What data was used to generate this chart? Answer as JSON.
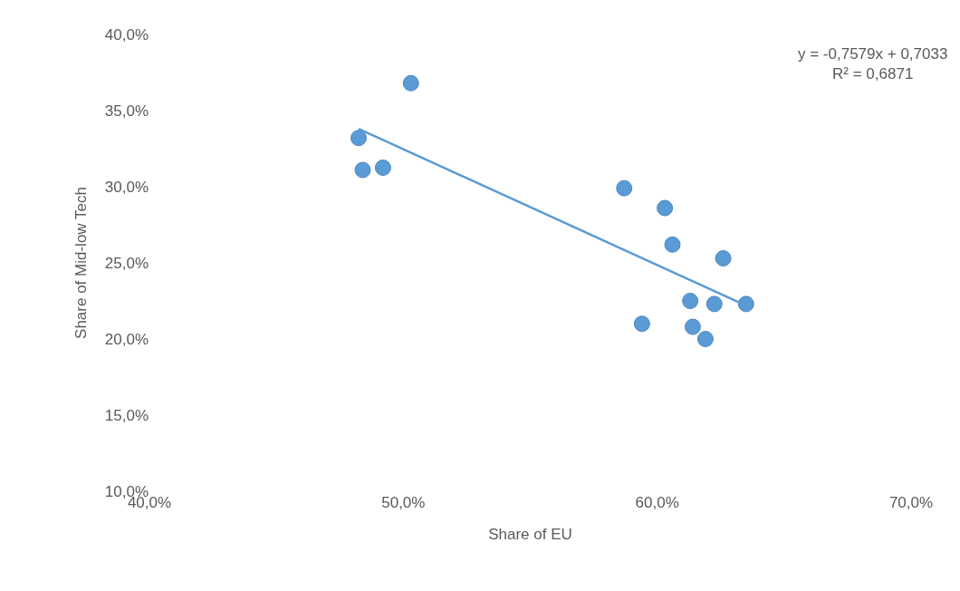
{
  "chart_data": {
    "type": "scatter",
    "xlabel": "Share of EU",
    "ylabel": "Share of Mid-low Tech",
    "series": [
      {
        "marker": "circle",
        "color": "#5b9bd5",
        "x": [
          48.24,
          48.4,
          49.2,
          50.3,
          58.7,
          59.4,
          60.3,
          60.6,
          61.3,
          61.4,
          61.9,
          62.25,
          62.6,
          63.5
        ],
        "values": [
          33.2,
          31.1,
          31.25,
          36.8,
          29.9,
          21.0,
          28.6,
          26.2,
          22.5,
          20.8,
          20.0,
          22.3,
          25.3,
          22.3
        ]
      },
      {
        "type": "line",
        "marker": "none",
        "color": "#5b9bd5",
        "x": [
          48.24,
          63.5
        ],
        "values": [
          33.8,
          22.2
        ]
      }
    ],
    "xlim": [
      40,
      70
    ],
    "ylim": [
      10,
      40
    ],
    "xticks": [
      {
        "value": 40,
        "label": "40,0%"
      },
      {
        "value": 50,
        "label": "50,0%"
      },
      {
        "value": 60,
        "label": "60,0%"
      },
      {
        "value": 70,
        "label": "70,0%"
      }
    ],
    "yticks": [
      {
        "value": 10,
        "label": "10,0%"
      },
      {
        "value": 15,
        "label": "15,0%"
      },
      {
        "value": 20,
        "label": "20,0%"
      },
      {
        "value": 25,
        "label": "25,0%"
      },
      {
        "value": 30,
        "label": "30,0%"
      },
      {
        "value": 35,
        "label": "35,0%"
      },
      {
        "value": 40,
        "label": "40,0%"
      }
    ],
    "annotations": [
      "y = -0,7579x + 0,7033\nR² = 0,6871"
    ]
  }
}
